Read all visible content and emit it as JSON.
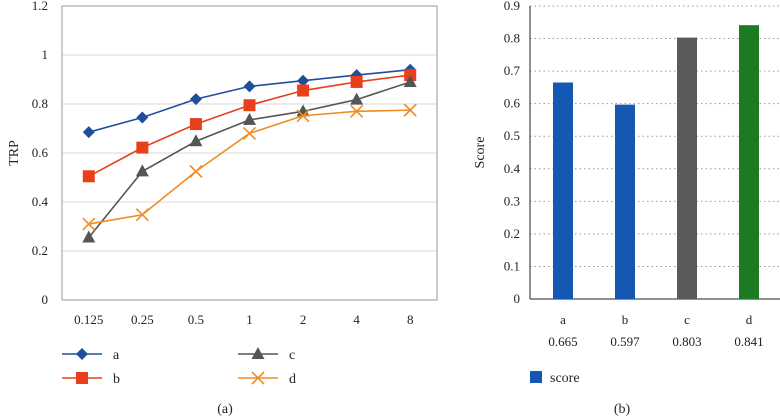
{
  "chart_data": [
    {
      "type": "line",
      "panel": "(a)",
      "title": "",
      "xlabel": "",
      "ylabel": "TRP",
      "categories": [
        "0.125",
        "0.25",
        "0.5",
        "1",
        "2",
        "4",
        "8"
      ],
      "ylim": [
        0,
        1.2
      ],
      "yticks": [
        "0",
        "0.2",
        "0.4",
        "0.6",
        "0.8",
        "1",
        "1.2"
      ],
      "grid": true,
      "legend_position": "bottom",
      "series": [
        {
          "name": "a",
          "color": "#1f4e9c",
          "marker": "diamond",
          "values": [
            0.685,
            0.745,
            0.82,
            0.872,
            0.895,
            0.918,
            0.94
          ]
        },
        {
          "name": "b",
          "color": "#e8401c",
          "marker": "square",
          "values": [
            0.505,
            0.622,
            0.718,
            0.795,
            0.855,
            0.89,
            0.918
          ]
        },
        {
          "name": "c",
          "color": "#555555",
          "marker": "triangle",
          "values": [
            0.255,
            0.525,
            0.648,
            0.735,
            0.77,
            0.818,
            0.89
          ]
        },
        {
          "name": "d",
          "color": "#f08c22",
          "marker": "x",
          "values": [
            0.31,
            0.348,
            0.525,
            0.68,
            0.752,
            0.77,
            0.775
          ]
        }
      ]
    },
    {
      "type": "bar",
      "panel": "(b)",
      "title": "",
      "xlabel": "",
      "ylabel": "Score",
      "categories": [
        "a",
        "b",
        "c",
        "d"
      ],
      "values": [
        0.665,
        0.597,
        0.803,
        0.841
      ],
      "value_labels": [
        "0.665",
        "0.597",
        "0.803",
        "0.841"
      ],
      "colors": [
        "#1558b3",
        "#1558b3",
        "#5a5a5a",
        "#1c7a23"
      ],
      "ylim": [
        0,
        0.9
      ],
      "yticks": [
        "0",
        "0.1",
        "0.2",
        "0.3",
        "0.4",
        "0.5",
        "0.6",
        "0.7",
        "0.8",
        "0.9"
      ],
      "grid": "dotted",
      "legend": [
        "score"
      ],
      "legend_color": "#1558b3",
      "legend_position": "bottom-left"
    }
  ]
}
